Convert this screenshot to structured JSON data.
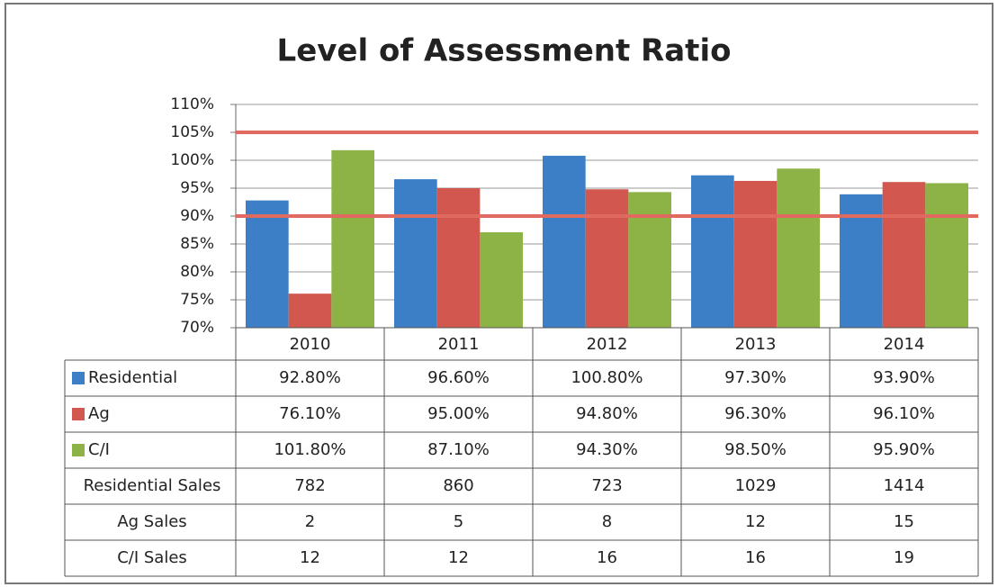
{
  "chart_data": {
    "type": "bar",
    "title": "Level of Assessment Ratio",
    "categories": [
      "2010",
      "2011",
      "2012",
      "2013",
      "2014"
    ],
    "series": [
      {
        "name": "Residential",
        "color": "#3c7fc6",
        "values": [
          92.8,
          96.6,
          100.8,
          97.3,
          93.9
        ],
        "value_labels": [
          "92.80%",
          "96.60%",
          "100.80%",
          "97.30%",
          "93.90%"
        ]
      },
      {
        "name": "Ag",
        "color": "#d2574e",
        "values": [
          76.1,
          95.0,
          94.8,
          96.3,
          96.1
        ],
        "value_labels": [
          "76.10%",
          "95.00%",
          "94.80%",
          "96.30%",
          "96.10%"
        ]
      },
      {
        "name": "C/I",
        "color": "#8db347",
        "values": [
          101.8,
          87.1,
          94.3,
          98.5,
          95.9
        ],
        "value_labels": [
          "101.80%",
          "87.10%",
          "94.30%",
          "98.50%",
          "95.90%"
        ]
      }
    ],
    "reference_lines": {
      "color": "#e06a5f",
      "values": [
        105,
        90
      ]
    },
    "table_rows": [
      {
        "name": "Residential Sales",
        "values": [
          782,
          860,
          723,
          1029,
          1414
        ]
      },
      {
        "name": "Ag Sales",
        "values": [
          2,
          5,
          8,
          12,
          15
        ]
      },
      {
        "name": "C/I Sales",
        "values": [
          12,
          12,
          16,
          16,
          19
        ]
      }
    ],
    "ylim": [
      70,
      110
    ],
    "yticks": [
      {
        "value": 70,
        "label": "70%"
      },
      {
        "value": 75,
        "label": "75%"
      },
      {
        "value": 80,
        "label": "80%"
      },
      {
        "value": 85,
        "label": "85%"
      },
      {
        "value": 90,
        "label": "90%"
      },
      {
        "value": 95,
        "label": "95%"
      },
      {
        "value": 100,
        "label": "100%"
      },
      {
        "value": 105,
        "label": "105%"
      },
      {
        "value": 110,
        "label": "110%"
      }
    ],
    "grid": true
  }
}
